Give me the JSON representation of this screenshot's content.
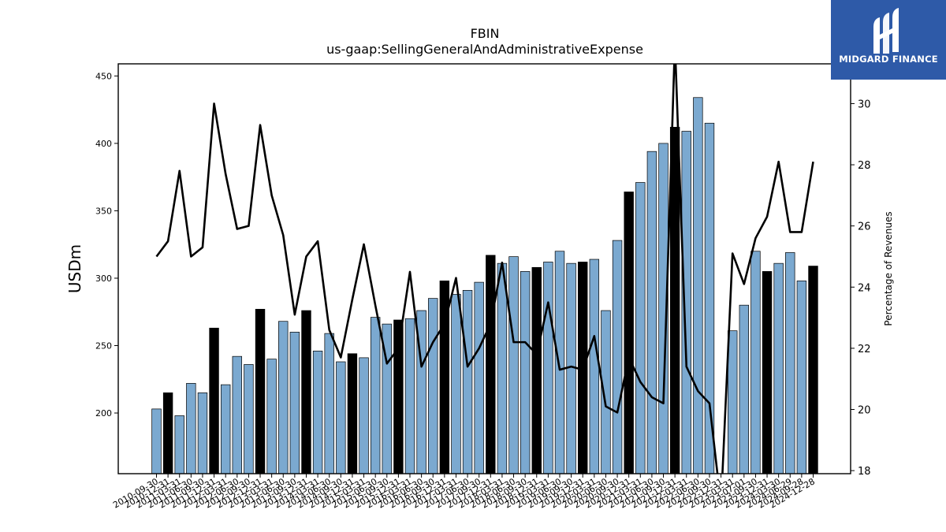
{
  "brand": {
    "name": "MIDGARD FINANCE",
    "color": "#2e5aa8"
  },
  "chart_data": {
    "type": "bar",
    "title": "FBIN",
    "subtitle": "us-gaap:SellingGeneralAndAdministrativeExpense",
    "ylabel": "USDm",
    "y2label": "Percentage of Revenues",
    "ylim": [
      155,
      459
    ],
    "y2lim": [
      17.9,
      31.3
    ],
    "yticks": [
      200,
      250,
      300,
      350,
      400,
      450
    ],
    "y2ticks": [
      18,
      20,
      22,
      24,
      26,
      28,
      30
    ],
    "colors": {
      "quarter_bar": "#7ba9d0",
      "fiscal_year_bar": "#000000",
      "line": "#000000"
    },
    "categories": [
      "2010-09-30",
      "2010-12-31",
      "2011-03-31",
      "2011-06-30",
      "2011-09-30",
      "2011-12-31",
      "2012-03-31",
      "2012-06-30",
      "2012-09-30",
      "2012-12-31",
      "2013-03-31",
      "2013-06-30",
      "2013-09-30",
      "2013-12-31",
      "2014-03-31",
      "2014-06-30",
      "2014-09-30",
      "2014-12-31",
      "2015-03-31",
      "2015-06-30",
      "2015-09-30",
      "2015-12-31",
      "2016-03-31",
      "2016-06-30",
      "2016-09-30",
      "2016-12-31",
      "2017-03-31",
      "2017-06-30",
      "2017-09-30",
      "2017-12-31",
      "2018-03-31",
      "2018-06-30",
      "2018-09-30",
      "2018-12-31",
      "2019-03-31",
      "2019-06-30",
      "2019-09-30",
      "2019-12-31",
      "2020-03-31",
      "2020-06-30",
      "2020-09-30",
      "2020-12-31",
      "2021-03-31",
      "2021-06-30",
      "2021-09-30",
      "2021-12-31",
      "2022-03-31",
      "2022-06-30",
      "2022-09-30",
      "2022-12-31",
      "2023-03-31",
      "2023-07-01",
      "2023-09-30",
      "2023-12-31",
      "2024-03-30",
      "2024-06-29",
      "2024-09-28",
      "2024-12-28"
    ],
    "tick_labels": [
      "2010-09-30",
      "2010-12-31",
      "2011-03-31",
      "2011-06-30",
      "2011-09-30",
      "2011-12-31",
      "2012-03-31",
      "2012-06-30",
      "2012-09-30",
      "2012-12-31",
      "2013-03-31",
      "2013-06-30",
      "2013-09-30",
      "2013-12-31",
      "2014-03-31",
      "2014-06-30",
      "2014-09-30",
      "2014-12-31",
      "2015-03-31",
      "2015-06-30",
      "2015-09-30",
      "2015-12-31",
      "2016-03-31",
      "2016-06-30",
      "2016-09-30",
      "2016-12-31",
      "2017-03-31",
      "2017-06-30",
      "2017-09-30",
      "2017-12-31",
      "2018-03-31",
      "2018-06-30",
      "2018-09-30",
      "2018-12-31",
      "2019-03-31",
      "2019-06-30",
      "2019-09-30",
      "2019-12-31",
      "2020-03-31",
      "2020-06-30",
      "2020-09-30",
      "2020-12-31",
      "2021-03-31",
      "2021-06-30",
      "2021-09-30",
      "2021-12-31",
      "2022-03-31",
      "2022-06-30",
      "2022-09-30",
      "2022-12-31",
      "2023-03-31",
      "2023-07-01",
      "2023-09-30",
      "2023-12-31",
      "2024-03-30",
      "2024-06-29",
      "2024-09-28",
      "2024-12-28"
    ],
    "series": [
      {
        "kind": "bar",
        "values": [
          203,
          215,
          198,
          222,
          215,
          263,
          221,
          242,
          236,
          277,
          240,
          268,
          260,
          276,
          246,
          259,
          238,
          244,
          241,
          271,
          266,
          269,
          270,
          276,
          285,
          298,
          288,
          291,
          297,
          317,
          311,
          316,
          305,
          308,
          312,
          320,
          311,
          312,
          314,
          276,
          328,
          364,
          371,
          394,
          400,
          412,
          409,
          434,
          415,
          null,
          261,
          280,
          320,
          305,
          311,
          319,
          298,
          309
        ],
        "fiscal_year_end": [
          false,
          true,
          false,
          false,
          false,
          true,
          false,
          false,
          false,
          true,
          false,
          false,
          false,
          true,
          false,
          false,
          false,
          true,
          false,
          false,
          false,
          true,
          false,
          false,
          false,
          true,
          false,
          false,
          false,
          true,
          false,
          false,
          false,
          true,
          false,
          false,
          false,
          true,
          false,
          false,
          false,
          true,
          false,
          false,
          false,
          true,
          false,
          false,
          false,
          true,
          false,
          false,
          false,
          true,
          false,
          false,
          false,
          true
        ]
      },
      {
        "kind": "line",
        "axis": "right",
        "values": [
          25.0,
          25.5,
          27.8,
          25.0,
          25.3,
          30.0,
          27.7,
          25.9,
          26.0,
          29.3,
          27.0,
          25.7,
          23.1,
          25.0,
          25.5,
          22.6,
          21.7,
          23.6,
          25.4,
          23.4,
          21.5,
          22.0,
          24.5,
          21.4,
          22.2,
          22.8,
          24.3,
          21.4,
          22.0,
          22.8,
          24.8,
          22.2,
          22.2,
          21.8,
          23.5,
          21.3,
          21.4,
          21.3,
          22.4,
          20.1,
          19.9,
          21.7,
          20.9,
          20.4,
          20.2,
          32.0,
          21.4,
          20.6,
          20.2,
          null,
          25.1,
          24.1,
          25.6,
          26.3,
          28.1,
          25.8,
          25.8,
          28.1
        ]
      }
    ]
  }
}
